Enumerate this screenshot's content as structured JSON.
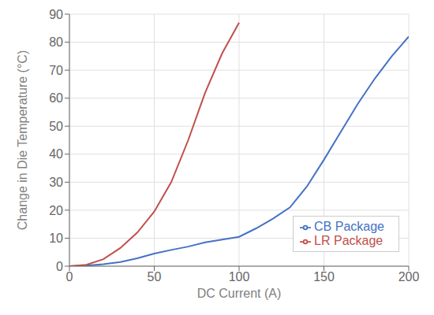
{
  "chart_data": {
    "type": "line",
    "xlabel": "DC Current (A)",
    "ylabel": "Change in Die Temperature (°C)",
    "series": [
      {
        "name": "CB Package",
        "color": "#4472c4",
        "x": [
          0,
          10,
          20,
          30,
          40,
          50,
          60,
          70,
          80,
          90,
          100,
          110,
          120,
          130,
          140,
          150,
          160,
          170,
          180,
          190,
          200
        ],
        "values": [
          0,
          0.2,
          0.7,
          1.5,
          2.8,
          4.5,
          5.8,
          7.0,
          8.5,
          9.5,
          10.5,
          13.5,
          17.0,
          21.0,
          28.5,
          38.0,
          48.0,
          58.0,
          67.0,
          75.0,
          82.0
        ]
      },
      {
        "name": "LR Package",
        "color": "#c0504d",
        "x": [
          0,
          10,
          20,
          30,
          40,
          50,
          60,
          70,
          80,
          90,
          100
        ],
        "values": [
          0,
          0.5,
          2.5,
          6.5,
          12.0,
          19.5,
          30.0,
          45.0,
          62.0,
          76.0,
          87.0
        ]
      }
    ],
    "xlim": [
      0,
      200
    ],
    "ylim": [
      0,
      90
    ],
    "xticks": [
      0,
      50,
      100,
      150,
      200
    ],
    "yticks": [
      0,
      10,
      20,
      30,
      40,
      50,
      60,
      70,
      80,
      90
    ],
    "grid": true,
    "legend": "lower right"
  }
}
